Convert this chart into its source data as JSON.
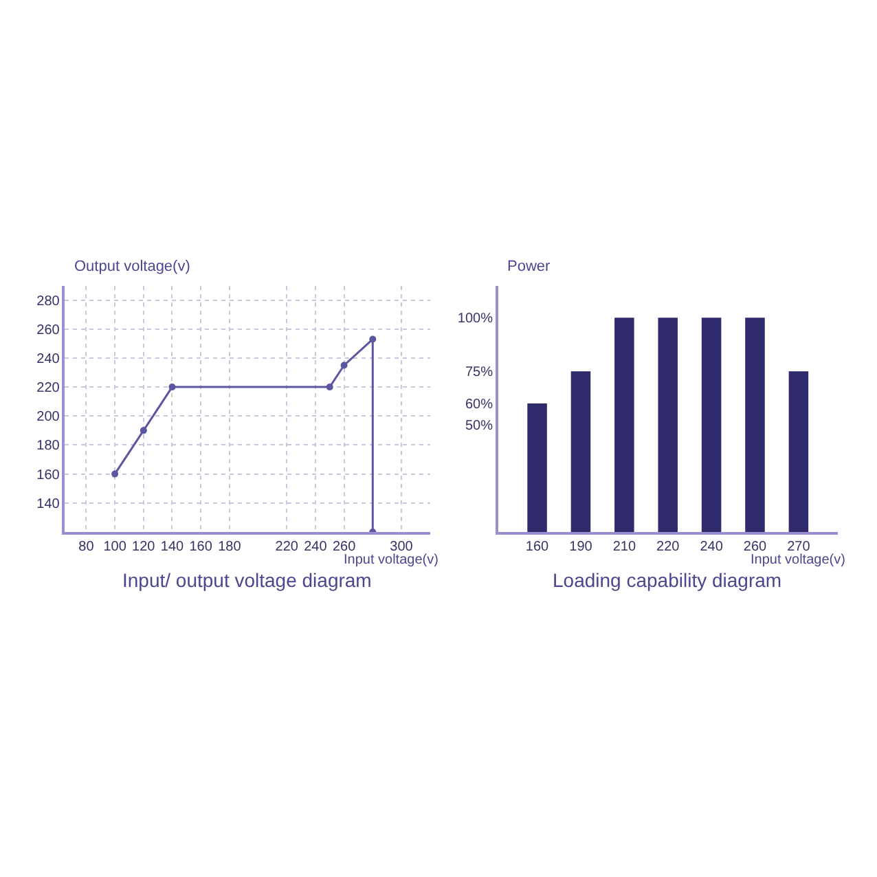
{
  "chart_data": [
    {
      "type": "line",
      "title": "Input/ output voltage diagram",
      "xlabel": "Input voltage(v)",
      "ylabel": "Output voltage(v)",
      "marker": "circle",
      "line_style": "solid",
      "grid": true,
      "series": [
        {
          "color": "#5a57a0",
          "x": [
            100,
            120,
            140,
            250,
            260,
            280,
            280
          ],
          "values": [
            160,
            190,
            220,
            220,
            235,
            253,
            120
          ]
        }
      ],
      "xlim": [
        65,
        320
      ],
      "xticks": [
        80,
        100,
        120,
        140,
        160,
        180,
        220,
        240,
        260,
        300
      ],
      "ylim": [
        120,
        290
      ],
      "yticks": [
        140,
        160,
        180,
        200,
        220,
        240,
        260,
        280
      ]
    },
    {
      "type": "bar",
      "title": "Loading capability diagram",
      "xlabel": "Input voltage(v)",
      "ylabel": "Power",
      "grid": false,
      "categories": [
        "160",
        "190",
        "210",
        "220",
        "240",
        "260",
        "270"
      ],
      "series": [
        {
          "color": "#2e2a6b",
          "values": [
            60,
            75,
            100,
            100,
            100,
            100,
            75
          ]
        }
      ],
      "ylim": [
        0,
        115
      ],
      "yticks": [
        {
          "value": 50,
          "label": "50%"
        },
        {
          "value": 60,
          "label": "60%"
        },
        {
          "value": 75,
          "label": "75%"
        },
        {
          "value": 100,
          "label": "100%"
        }
      ]
    }
  ]
}
